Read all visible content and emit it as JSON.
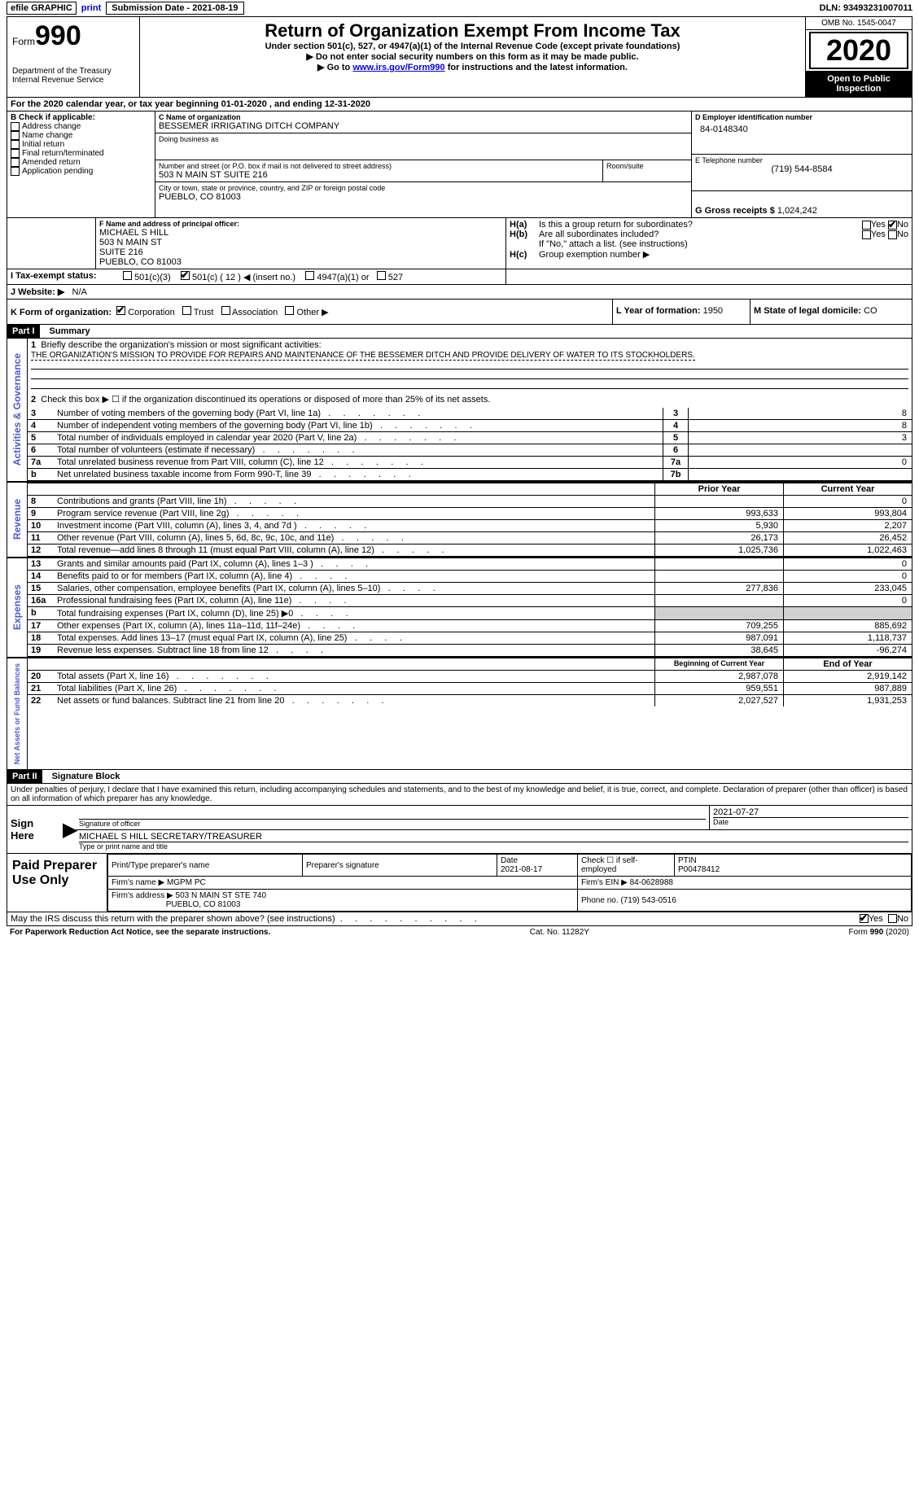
{
  "top": {
    "efile": "efile GRAPHIC",
    "print": "print",
    "submission": "Submission Date - 2021-08-19",
    "dln": "DLN: 93493231007011"
  },
  "header": {
    "form_label": "Form",
    "form_num": "990",
    "dept": "Department of the Treasury\nInternal Revenue Service",
    "title": "Return of Organization Exempt From Income Tax",
    "sub1": "Under section 501(c), 527, or 4947(a)(1) of the Internal Revenue Code (except private foundations)",
    "sub2": "▶ Do not enter social security numbers on this form as it may be made public.",
    "sub3_pre": "▶ Go to ",
    "sub3_link": "www.irs.gov/Form990",
    "sub3_post": " for instructions and the latest information.",
    "omb": "OMB No. 1545-0047",
    "year": "2020",
    "open": "Open to Public Inspection"
  },
  "line_a": "For the 2020 calendar year, or tax year beginning 01-01-2020   , and ending 12-31-2020",
  "section_b": {
    "title": "B Check if applicable:",
    "items": [
      "Address change",
      "Name change",
      "Initial return",
      "Final return/terminated",
      "Amended return",
      "Application pending"
    ]
  },
  "section_c": {
    "label": "C Name of organization",
    "value": "BESSEMER IRRIGATING DITCH COMPANY",
    "dba": "Doing business as",
    "street_label": "Number and street (or P.O. box if mail is not delivered to street address)",
    "street": "503 N MAIN ST SUITE 216",
    "room_label": "Room/suite",
    "city_label": "City or town, state or province, country, and ZIP or foreign postal code",
    "city": "PUEBLO, CO  81003"
  },
  "section_d": {
    "label": "D Employer identification number",
    "value": "84-0148340"
  },
  "section_e": {
    "label": "E Telephone number",
    "value": "(719) 544-8584"
  },
  "section_g": {
    "label": "G Gross receipts $",
    "value": "1,024,242"
  },
  "section_f": {
    "label": "F Name and address of principal officer:",
    "name": "MICHAEL S HILL",
    "addr1": "503 N MAIN ST",
    "addr2": "SUITE 216",
    "addr3": "PUEBLO, CO  81003"
  },
  "section_h": {
    "ha": "Is this a group return for subordinates?",
    "hb": "Are all subordinates included?",
    "hb_note": "If \"No,\" attach a list. (see instructions)",
    "hc": "Group exemption number ▶",
    "yes": "Yes",
    "no": "No",
    "ha_label": "H(a)",
    "hb_label": "H(b)",
    "hc_label": "H(c)"
  },
  "section_i": {
    "label": "I    Tax-exempt status:",
    "opt1": "501(c)(3)",
    "opt2": "501(c) ( 12 ) ◀ (insert no.)",
    "opt3": "4947(a)(1) or",
    "opt4": "527"
  },
  "section_j": {
    "label": "J   Website: ▶",
    "value": "N/A"
  },
  "section_k": {
    "label": "K Form of organization:",
    "corp": "Corporation",
    "trust": "Trust",
    "assoc": "Association",
    "other": "Other ▶"
  },
  "section_l": {
    "label": "L Year of formation:",
    "value": "1950"
  },
  "section_m": {
    "label": "M State of legal domicile:",
    "value": "CO"
  },
  "part1": {
    "header": "Part I",
    "title": "Summary",
    "line1_label": "1",
    "line1_text": "Briefly describe the organization's mission or most significant activities:",
    "mission": "THE ORGANIZATION'S MISSION TO PROVIDE FOR REPAIRS AND MAINTENANCE OF THE BESSEMER DITCH AND PROVIDE DELIVERY OF WATER TO ITS STOCKHOLDERS.",
    "line2": "Check this box ▶ ☐  if the organization discontinued its operations or disposed of more than 25% of its net assets.",
    "lines": [
      {
        "num": "3",
        "text": "Number of voting members of the governing body (Part VI, line 1a)",
        "box": "3",
        "val": "8"
      },
      {
        "num": "4",
        "text": "Number of independent voting members of the governing body (Part VI, line 1b)",
        "box": "4",
        "val": "8"
      },
      {
        "num": "5",
        "text": "Total number of individuals employed in calendar year 2020 (Part V, line 2a)",
        "box": "5",
        "val": "3"
      },
      {
        "num": "6",
        "text": "Total number of volunteers (estimate if necessary)",
        "box": "6",
        "val": ""
      },
      {
        "num": "7a",
        "text": "Total unrelated business revenue from Part VIII, column (C), line 12",
        "box": "7a",
        "val": "0"
      },
      {
        "num": "b",
        "text": "Net unrelated business taxable income from Form 990-T, line 39",
        "box": "7b",
        "val": ""
      }
    ],
    "col_prior": "Prior Year",
    "col_current": "Current Year",
    "revenue_label": "Revenue",
    "expenses_label": "Expenses",
    "net_label": "Net Assets or Fund Balances",
    "gov_label": "Activities & Governance",
    "rev_lines": [
      {
        "num": "8",
        "text": "Contributions and grants (Part VIII, line 1h)",
        "prior": "",
        "curr": "0"
      },
      {
        "num": "9",
        "text": "Program service revenue (Part VIII, line 2g)",
        "prior": "993,633",
        "curr": "993,804"
      },
      {
        "num": "10",
        "text": "Investment income (Part VIII, column (A), lines 3, 4, and 7d )",
        "prior": "5,930",
        "curr": "2,207"
      },
      {
        "num": "11",
        "text": "Other revenue (Part VIII, column (A), lines 5, 6d, 8c, 9c, 10c, and 11e)",
        "prior": "26,173",
        "curr": "26,452"
      },
      {
        "num": "12",
        "text": "Total revenue—add lines 8 through 11 (must equal Part VIII, column (A), line 12)",
        "prior": "1,025,736",
        "curr": "1,022,463"
      }
    ],
    "exp_lines": [
      {
        "num": "13",
        "text": "Grants and similar amounts paid (Part IX, column (A), lines 1–3 )",
        "prior": "",
        "curr": "0"
      },
      {
        "num": "14",
        "text": "Benefits paid to or for members (Part IX, column (A), line 4)",
        "prior": "",
        "curr": "0"
      },
      {
        "num": "15",
        "text": "Salaries, other compensation, employee benefits (Part IX, column (A), lines 5–10)",
        "prior": "277,836",
        "curr": "233,045"
      },
      {
        "num": "16a",
        "text": "Professional fundraising fees (Part IX, column (A), line 11e)",
        "prior": "",
        "curr": "0"
      },
      {
        "num": "b",
        "text": "Total fundraising expenses (Part IX, column (D), line 25) ▶0",
        "prior": "shaded",
        "curr": "shaded"
      },
      {
        "num": "17",
        "text": "Other expenses (Part IX, column (A), lines 11a–11d, 11f–24e)",
        "prior": "709,255",
        "curr": "885,692"
      },
      {
        "num": "18",
        "text": "Total expenses. Add lines 13–17 (must equal Part IX, column (A), line 25)",
        "prior": "987,091",
        "curr": "1,118,737"
      },
      {
        "num": "19",
        "text": "Revenue less expenses. Subtract line 18 from line 12",
        "prior": "38,645",
        "curr": "-96,274"
      }
    ],
    "col_begin": "Beginning of Current Year",
    "col_end": "End of Year",
    "net_lines": [
      {
        "num": "20",
        "text": "Total assets (Part X, line 16)",
        "prior": "2,987,078",
        "curr": "2,919,142"
      },
      {
        "num": "21",
        "text": "Total liabilities (Part X, line 26)",
        "prior": "959,551",
        "curr": "987,889"
      },
      {
        "num": "22",
        "text": "Net assets or fund balances. Subtract line 21 from line 20",
        "prior": "2,027,527",
        "curr": "1,931,253"
      }
    ]
  },
  "part2": {
    "header": "Part II",
    "title": "Signature Block",
    "perjury": "Under penalties of perjury, I declare that I have examined this return, including accompanying schedules and statements, and to the best of my knowledge and belief, it is true, correct, and complete. Declaration of preparer (other than officer) is based on all information of which preparer has any knowledge.",
    "sign_here": "Sign Here",
    "sig_officer": "Signature of officer",
    "date": "Date",
    "date_val": "2021-07-27",
    "name": "MICHAEL S HILL  SECRETARY/TREASURER",
    "name_label": "Type or print name and title",
    "paid": "Paid Preparer Use Only",
    "prep_name": "Print/Type preparer's name",
    "prep_sig": "Preparer's signature",
    "prep_date": "Date",
    "prep_date_val": "2021-08-17",
    "check_self": "Check ☐ if self-employed",
    "ptin": "PTIN",
    "ptin_val": "P00478412",
    "firm_name_label": "Firm's name    ▶",
    "firm_name": "MGPM PC",
    "firm_ein_label": "Firm's EIN ▶",
    "firm_ein": "84-0628988",
    "firm_addr_label": "Firm's address ▶",
    "firm_addr": "503 N MAIN ST STE 740",
    "firm_city": "PUEBLO, CO  81003",
    "phone_label": "Phone no.",
    "phone": "(719) 543-0516",
    "may_irs": "May the IRS discuss this return with the preparer shown above? (see instructions)",
    "yes": "Yes",
    "no": "No"
  },
  "footer": {
    "pra": "For Paperwork Reduction Act Notice, see the separate instructions.",
    "cat": "Cat. No. 11282Y",
    "form": "Form 990 (2020)"
  }
}
